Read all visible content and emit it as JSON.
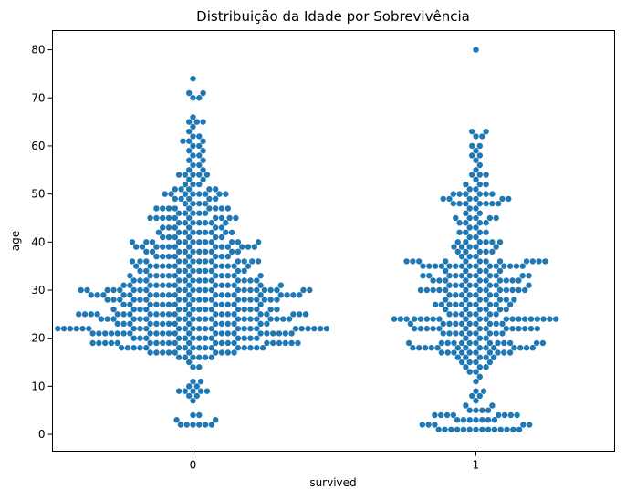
{
  "chart_data": {
    "type": "scatter",
    "subtype": "swarm",
    "title": "Distribuição da Idade por Sobrevivência",
    "xlabel": "survived",
    "ylabel": "age",
    "categories": [
      "0",
      "1"
    ],
    "ylim": [
      -3.5,
      84
    ],
    "yticks": [
      0,
      10,
      20,
      30,
      40,
      50,
      60,
      70,
      80
    ],
    "grid": false,
    "color": "#1f77b4",
    "series": [
      {
        "category": "0",
        "values": [
          2,
          2,
          2,
          2,
          2,
          2,
          3,
          3,
          4,
          4,
          7,
          8,
          8,
          9,
          9,
          9,
          9,
          9,
          10,
          10,
          11,
          11,
          14,
          14,
          15,
          16,
          16,
          16,
          16,
          16,
          16,
          17,
          17,
          17,
          17,
          17,
          17,
          17,
          17,
          17,
          17,
          18,
          18,
          18,
          18,
          18,
          18,
          18,
          18,
          18,
          18,
          18,
          18,
          18,
          18,
          18,
          18,
          19,
          19,
          19,
          19,
          19,
          19,
          19,
          19,
          19,
          19,
          19,
          19,
          19,
          19,
          19,
          19,
          19,
          19,
          19,
          19,
          19,
          20,
          20,
          20,
          20,
          20,
          20,
          20,
          20,
          20,
          20,
          20,
          20,
          20,
          21,
          21,
          21,
          21,
          21,
          21,
          21,
          21,
          21,
          21,
          21,
          21,
          21,
          21,
          21,
          21,
          21,
          21,
          21,
          21,
          21,
          21,
          21,
          22,
          22,
          22,
          22,
          22,
          22,
          22,
          22,
          22,
          22,
          22,
          22,
          22,
          22,
          22,
          22,
          22,
          22,
          22,
          22,
          22,
          22,
          22,
          22,
          22,
          23,
          23,
          23,
          23,
          23,
          23,
          23,
          23,
          23,
          23,
          23,
          23,
          23,
          23,
          23,
          24,
          24,
          24,
          24,
          24,
          24,
          24,
          24,
          24,
          24,
          24,
          24,
          24,
          24,
          24,
          24,
          24,
          24,
          24,
          24,
          25,
          25,
          25,
          25,
          25,
          25,
          25,
          25,
          25,
          25,
          25,
          25,
          25,
          25,
          25,
          25,
          25,
          25,
          25,
          25,
          25,
          25,
          26,
          26,
          26,
          26,
          26,
          26,
          26,
          26,
          26,
          26,
          26,
          26,
          26,
          26,
          26,
          26,
          27,
          27,
          27,
          27,
          27,
          27,
          27,
          27,
          27,
          27,
          27,
          27,
          27,
          28,
          28,
          28,
          28,
          28,
          28,
          28,
          28,
          28,
          28,
          28,
          28,
          28,
          28,
          28,
          28,
          28,
          28,
          28,
          29,
          29,
          29,
          29,
          29,
          29,
          29,
          29,
          29,
          29,
          29,
          29,
          29,
          29,
          29,
          29,
          29,
          29,
          29,
          29,
          30,
          30,
          30,
          30,
          30,
          30,
          30,
          30,
          30,
          30,
          30,
          30,
          30,
          30,
          30,
          30,
          30,
          30,
          30,
          30,
          30,
          30,
          30,
          31,
          31,
          31,
          31,
          31,
          31,
          31,
          31,
          31,
          31,
          31,
          31,
          31,
          31,
          32,
          32,
          32,
          32,
          32,
          32,
          32,
          32,
          32,
          32,
          32,
          32,
          32,
          33,
          33,
          33,
          33,
          33,
          33,
          33,
          33,
          33,
          33,
          33,
          33,
          34,
          34,
          34,
          34,
          34,
          34,
          34,
          34,
          34,
          34,
          35,
          35,
          35,
          35,
          35,
          35,
          35,
          35,
          35,
          35,
          35,
          35,
          36,
          36,
          36,
          36,
          36,
          36,
          36,
          36,
          36,
          36,
          36,
          36,
          36,
          37,
          37,
          37,
          37,
          37,
          37,
          37,
          37,
          38,
          38,
          38,
          38,
          38,
          38,
          38,
          38,
          38,
          38,
          39,
          39,
          39,
          39,
          39,
          39,
          39,
          39,
          39,
          39,
          39,
          39,
          39,
          40,
          40,
          40,
          40,
          40,
          40,
          40,
          40,
          40,
          40,
          40,
          40,
          41,
          41,
          41,
          41,
          41,
          41,
          42,
          42,
          42,
          42,
          42,
          42,
          42,
          42,
          42,
          43,
          43,
          43,
          43,
          43,
          43,
          44,
          44,
          44,
          44,
          44,
          44,
          44,
          45,
          45,
          45,
          45,
          45,
          45,
          45,
          45,
          45,
          45,
          46,
          46,
          46,
          46,
          46,
          47,
          47,
          47,
          47,
          47,
          47,
          47,
          47,
          47,
          48,
          48,
          48,
          48,
          49,
          49,
          49,
          49,
          49,
          50,
          50,
          50,
          50,
          50,
          50,
          50,
          50,
          51,
          51,
          51,
          51,
          51,
          52,
          52,
          52,
          53,
          53,
          54,
          54,
          54,
          54,
          54,
          55,
          55,
          56,
          56,
          57,
          57,
          58,
          58,
          59,
          59,
          60,
          60,
          61,
          61,
          61,
          62,
          62,
          63,
          64,
          65,
          65,
          65,
          66,
          70,
          70,
          71,
          71,
          74
        ]
      },
      {
        "category": "1",
        "values": [
          1,
          1,
          1,
          1,
          1,
          1,
          1,
          1,
          1,
          1,
          1,
          1,
          1,
          1,
          2,
          2,
          2,
          2,
          2,
          3,
          3,
          3,
          3,
          3,
          3,
          3,
          4,
          4,
          4,
          4,
          4,
          4,
          4,
          4,
          5,
          5,
          5,
          5,
          6,
          6,
          7,
          8,
          8,
          9,
          9,
          11,
          12,
          13,
          13,
          14,
          14,
          14,
          15,
          15,
          15,
          15,
          16,
          16,
          16,
          16,
          16,
          17,
          17,
          17,
          17,
          17,
          17,
          17,
          17,
          17,
          17,
          18,
          18,
          18,
          18,
          18,
          18,
          18,
          18,
          18,
          18,
          18,
          18,
          18,
          18,
          19,
          19,
          19,
          19,
          19,
          19,
          19,
          19,
          19,
          19,
          19,
          19,
          19,
          20,
          20,
          20,
          21,
          21,
          21,
          21,
          21,
          21,
          21,
          21,
          21,
          22,
          22,
          22,
          22,
          22,
          22,
          22,
          22,
          22,
          22,
          22,
          22,
          22,
          22,
          23,
          23,
          23,
          23,
          23,
          23,
          23,
          23,
          23,
          23,
          24,
          24,
          24,
          24,
          24,
          24,
          24,
          24,
          24,
          24,
          24,
          24,
          24,
          24,
          24,
          24,
          24,
          24,
          24,
          24,
          25,
          25,
          25,
          25,
          25,
          25,
          25,
          26,
          26,
          26,
          26,
          26,
          26,
          27,
          27,
          27,
          27,
          27,
          27,
          27,
          27,
          27,
          27,
          28,
          28,
          28,
          28,
          28,
          28,
          28,
          29,
          29,
          29,
          29,
          29,
          29,
          29,
          30,
          30,
          30,
          30,
          30,
          30,
          30,
          30,
          30,
          30,
          30,
          30,
          30,
          31,
          31,
          31,
          31,
          31,
          31,
          31,
          31,
          32,
          32,
          32,
          32,
          32,
          32,
          32,
          32,
          32,
          32,
          33,
          33,
          33,
          33,
          33,
          33,
          33,
          33,
          33,
          33,
          33,
          34,
          34,
          34,
          34,
          34,
          35,
          35,
          35,
          35,
          35,
          35,
          35,
          35,
          35,
          35,
          35,
          35,
          35,
          35,
          35,
          36,
          36,
          36,
          36,
          36,
          36,
          36,
          36,
          36,
          36,
          36,
          36,
          37,
          37,
          37,
          38,
          38,
          38,
          38,
          38,
          39,
          39,
          39,
          39,
          39,
          40,
          40,
          40,
          40,
          40,
          40,
          41,
          41,
          42,
          42,
          42,
          42,
          43,
          43,
          44,
          44,
          44,
          44,
          45,
          45,
          45,
          45,
          45,
          46,
          46,
          47,
          47,
          48,
          48,
          48,
          48,
          48,
          48,
          48,
          49,
          49,
          49,
          49,
          49,
          49,
          50,
          50,
          50,
          50,
          50,
          50,
          51,
          51,
          52,
          52,
          52,
          53,
          54,
          54,
          54,
          55,
          56,
          57,
          58,
          58,
          59,
          60,
          60,
          62,
          62,
          63,
          63,
          80
        ]
      }
    ]
  }
}
